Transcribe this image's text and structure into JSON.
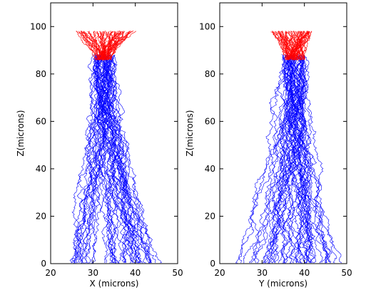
{
  "chart_data": [
    {
      "type": "line",
      "xlabel": "X (microns)",
      "ylabel": "Z(microns)",
      "xlim": [
        20,
        50
      ],
      "ylim": [
        0,
        110
      ],
      "xticks": [
        "20",
        "30",
        "40",
        "50"
      ],
      "yticks": [
        "0",
        "20",
        "40",
        "60",
        "80",
        "100"
      ],
      "grid": false,
      "series": [
        {
          "color": "#0000ff",
          "z_range": [
            0,
            88
          ],
          "x_spread_at_bottom": [
            24,
            46
          ],
          "x_center": 32.5,
          "trajectories": 50
        },
        {
          "color": "#ff0000",
          "z_range": [
            86,
            98
          ],
          "x_spread_at_top": [
            26,
            40
          ],
          "x_center": 32.5,
          "trajectories": 60
        }
      ]
    },
    {
      "type": "line",
      "xlabel": "Y (microns)",
      "ylabel": "Z(microns)",
      "xlim": [
        20,
        50
      ],
      "ylim": [
        0,
        110
      ],
      "xticks": [
        "20",
        "30",
        "40",
        "50"
      ],
      "yticks": [
        "0",
        "20",
        "40",
        "60",
        "80",
        "100"
      ],
      "grid": false,
      "series": [
        {
          "color": "#0000ff",
          "z_range": [
            0,
            88
          ],
          "x_spread_at_bottom": [
            24,
            48
          ],
          "x_center": 37.5,
          "trajectories": 50
        },
        {
          "color": "#ff0000",
          "z_range": [
            86,
            98
          ],
          "x_spread_at_top": [
            32,
            42
          ],
          "x_center": 37.5,
          "trajectories": 60
        }
      ]
    }
  ]
}
